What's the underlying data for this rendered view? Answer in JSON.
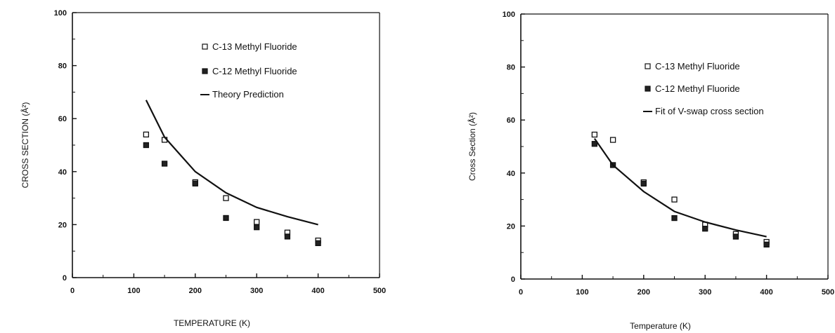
{
  "chart_data": [
    {
      "type": "scatter",
      "title": "",
      "xlabel": "TEMPERATURE (K)",
      "ylabel": "CROSS SECTION (Å²)",
      "xlim": [
        0,
        500
      ],
      "ylim": [
        0,
        100
      ],
      "xticks": [
        "0",
        "100",
        "200",
        "300",
        "400",
        "500"
      ],
      "yticks": [
        "0",
        "20",
        "40",
        "60",
        "80",
        "100"
      ],
      "grid": false,
      "legend_position": "top-right",
      "series": [
        {
          "name": "C-13 Methyl Fluoride",
          "kind": "marker-open-square",
          "x": [
            120,
            150,
            200,
            250,
            300,
            350,
            400
          ],
          "y": [
            54,
            52,
            36,
            30,
            21,
            17,
            14
          ]
        },
        {
          "name": "C-12 Methyl Fluoride",
          "kind": "marker-filled-square",
          "x": [
            120,
            150,
            200,
            250,
            300,
            350,
            400
          ],
          "y": [
            50,
            43,
            35.5,
            22.5,
            19,
            15.5,
            13
          ]
        },
        {
          "name": "Theory Prediction",
          "kind": "line",
          "x": [
            120,
            150,
            200,
            250,
            300,
            350,
            400
          ],
          "y": [
            67,
            53,
            40,
            32,
            26.5,
            23,
            20
          ]
        }
      ]
    },
    {
      "type": "scatter",
      "title": "",
      "xlabel": "Temperature (K)",
      "ylabel": "Cross Section (Å²)",
      "xlim": [
        0,
        500
      ],
      "ylim": [
        0,
        100
      ],
      "xticks": [
        "0",
        "100",
        "200",
        "300",
        "400",
        "500"
      ],
      "yticks": [
        "0",
        "20",
        "40",
        "60",
        "80",
        "100"
      ],
      "grid": false,
      "legend_position": "top-right",
      "series": [
        {
          "name": "C-13 Methyl Fluoride",
          "kind": "marker-open-square",
          "x": [
            120,
            150,
            200,
            250,
            300,
            350,
            400
          ],
          "y": [
            54.5,
            52.5,
            36.5,
            30,
            20.5,
            17,
            14
          ]
        },
        {
          "name": "C-12 Methyl Fluoride",
          "kind": "marker-filled-square",
          "x": [
            120,
            150,
            200,
            250,
            300,
            350,
            400
          ],
          "y": [
            51,
            43,
            36,
            23,
            19,
            16,
            13
          ]
        },
        {
          "name": "Fit of V-swap cross section",
          "kind": "line",
          "x": [
            120,
            150,
            200,
            250,
            300,
            350,
            400
          ],
          "y": [
            53,
            43,
            33,
            25.5,
            21.5,
            18.5,
            16
          ]
        }
      ]
    }
  ]
}
